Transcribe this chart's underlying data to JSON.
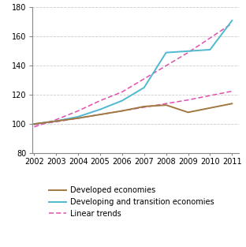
{
  "years": [
    2002,
    2003,
    2004,
    2005,
    2006,
    2007,
    2008,
    2009,
    2010,
    2011
  ],
  "developed": [
    100,
    102,
    104,
    106.5,
    109,
    112,
    113,
    108,
    111,
    114
  ],
  "developing": [
    100,
    102,
    105,
    110,
    116,
    125,
    149,
    150,
    151,
    171
  ],
  "linear_developed": [
    99.5,
    101.5,
    104,
    106.5,
    109,
    111.5,
    114,
    116.5,
    119.5,
    122.5
  ],
  "linear_developing": [
    98,
    103,
    109,
    116,
    122,
    131,
    140,
    149,
    159,
    169
  ],
  "color_developed": "#a07840",
  "color_developing": "#50b8d0",
  "color_linear": "#e050b0",
  "ylim": [
    80,
    180
  ],
  "yticks": [
    80,
    100,
    120,
    140,
    160,
    180
  ],
  "xlim_min": 2002,
  "xlim_max": 2011,
  "legend_developed": "Developed economies",
  "legend_developing": "Developing and transition economies",
  "legend_linear": "Linear trends",
  "grid_color": "#cccccc",
  "background_color": "#ffffff",
  "tick_fontsize": 7,
  "legend_fontsize": 7
}
